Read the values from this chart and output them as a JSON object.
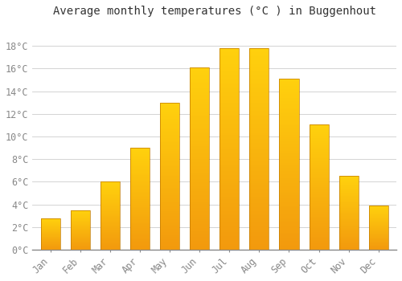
{
  "months": [
    "Jan",
    "Feb",
    "Mar",
    "Apr",
    "May",
    "Jun",
    "Jul",
    "Aug",
    "Sep",
    "Oct",
    "Nov",
    "Dec"
  ],
  "temperatures": [
    2.8,
    3.5,
    6.0,
    9.0,
    13.0,
    16.1,
    17.8,
    17.8,
    15.1,
    11.1,
    6.5,
    3.9
  ],
  "bar_color_edge": "#E8900A",
  "bar_color_center": "#FFD040",
  "bar_color_base": "#FFA500",
  "title": "Average monthly temperatures (°C ) in Buggenhout",
  "ylim": [
    0,
    20
  ],
  "yticks": [
    0,
    2,
    4,
    6,
    8,
    10,
    12,
    14,
    16,
    18
  ],
  "ytick_labels": [
    "0°C",
    "2°C",
    "4°C",
    "6°C",
    "8°C",
    "10°C",
    "12°C",
    "14°C",
    "16°C",
    "18°C"
  ],
  "background_color": "#FFFFFF",
  "grid_color": "#CCCCCC",
  "title_fontsize": 10,
  "tick_fontsize": 8.5,
  "bar_width": 0.65
}
